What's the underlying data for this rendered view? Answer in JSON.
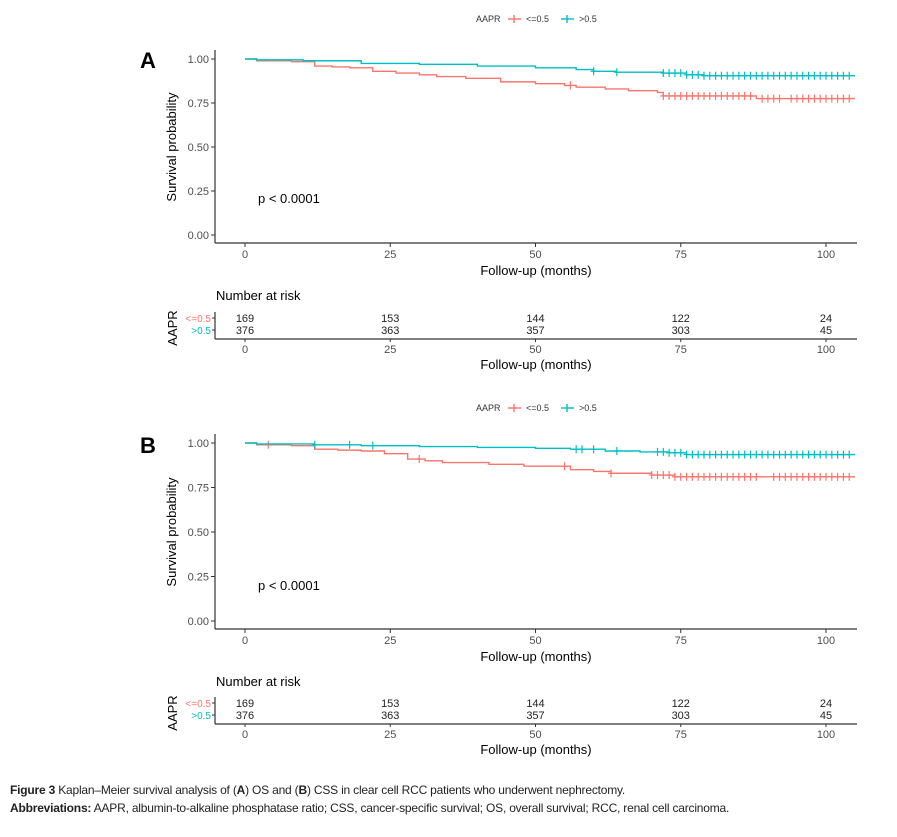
{
  "legend": {
    "title": "AAPR",
    "entries": [
      "<=0.5",
      ">0.5"
    ]
  },
  "colors": {
    "low": "#F8766D",
    "high": "#00BFC4",
    "axis": "#333333",
    "text": "#4d4d4d"
  },
  "caption": {
    "figure_label": "Figure 3",
    "text_parts": [
      " Kaplan–Meier survival analysis of (",
      "A",
      ") OS and (",
      "B",
      ") CSS in clear cell RCC patients who underwent nephrectomy."
    ],
    "abbrev_label": "Abbreviations:",
    "abbrev_text": " AAPR, albumin-to-alkaline phosphatase ratio; CSS, cancer-specific survival; OS, overall survival; RCC, renal cell carcinoma."
  },
  "chart_data": [
    {
      "type": "line",
      "panel_label": "A",
      "title": "",
      "xlabel": "Follow-up (months)",
      "ylabel": "Survival probability",
      "xlim": [
        -5,
        105
      ],
      "ylim": [
        0,
        1
      ],
      "x_ticks": [
        "0",
        "25",
        "50",
        "75",
        "100"
      ],
      "y_ticks": [
        "0.00",
        "0.25",
        "0.50",
        "0.75",
        "1.00"
      ],
      "annotation": "p < 0.0001",
      "legend_position": "top",
      "series": [
        {
          "name": "<=0.5",
          "color": "#F8766D",
          "steps": [
            [
              0,
              1.0
            ],
            [
              2,
              0.99
            ],
            [
              8,
              0.985
            ],
            [
              12,
              0.96
            ],
            [
              15,
              0.955
            ],
            [
              18,
              0.95
            ],
            [
              22,
              0.93
            ],
            [
              26,
              0.92
            ],
            [
              30,
              0.91
            ],
            [
              33,
              0.9
            ],
            [
              38,
              0.89
            ],
            [
              44,
              0.87
            ],
            [
              50,
              0.86
            ],
            [
              55,
              0.85
            ],
            [
              57,
              0.84
            ],
            [
              62,
              0.83
            ],
            [
              66,
              0.82
            ],
            [
              71,
              0.81
            ],
            [
              72,
              0.79
            ],
            [
              88,
              0.775
            ],
            [
              105,
              0.775
            ]
          ],
          "censored": [
            56,
            72,
            73,
            74,
            75,
            76,
            77,
            78,
            79,
            80,
            81,
            82,
            83,
            84,
            85,
            86,
            87,
            89,
            90,
            91,
            92,
            94,
            95,
            96,
            97,
            98,
            99,
            100,
            101,
            102,
            103,
            104
          ]
        },
        {
          "name": ">0.5",
          "color": "#00BFC4",
          "steps": [
            [
              0,
              1.0
            ],
            [
              2,
              0.995
            ],
            [
              10,
              0.99
            ],
            [
              20,
              0.975
            ],
            [
              30,
              0.97
            ],
            [
              40,
              0.96
            ],
            [
              50,
              0.95
            ],
            [
              57,
              0.94
            ],
            [
              60,
              0.93
            ],
            [
              64,
              0.925
            ],
            [
              72,
              0.92
            ],
            [
              76,
              0.91
            ],
            [
              79,
              0.905
            ],
            [
              105,
              0.905
            ]
          ],
          "censored": [
            60,
            64,
            72,
            73,
            74,
            75,
            76,
            77,
            78,
            79,
            80,
            81,
            82,
            83,
            84,
            85,
            86,
            87,
            88,
            89,
            90,
            91,
            92,
            93,
            94,
            95,
            96,
            97,
            98,
            99,
            100,
            101,
            102,
            103,
            104
          ]
        }
      ],
      "risk_table": {
        "title": "Number at risk",
        "strata_label": "AAPR",
        "times": [
          0,
          25,
          50,
          75,
          100
        ],
        "rows": [
          {
            "name": "<=0.5",
            "color": "#F8766D",
            "values": [
              169,
              153,
              144,
              122,
              24
            ]
          },
          {
            "name": ">0.5",
            "color": "#00BFC4",
            "values": [
              376,
              363,
              357,
              303,
              45
            ]
          }
        ],
        "xlabel": "Follow-up (months)"
      }
    },
    {
      "type": "line",
      "panel_label": "B",
      "title": "",
      "xlabel": "Follow-up (months)",
      "ylabel": "Survival probability",
      "xlim": [
        -5,
        105
      ],
      "ylim": [
        0,
        1
      ],
      "x_ticks": [
        "0",
        "25",
        "50",
        "75",
        "100"
      ],
      "y_ticks": [
        "0.00",
        "0.25",
        "0.50",
        "0.75",
        "1.00"
      ],
      "annotation": "p < 0.0001",
      "legend_position": "top",
      "series": [
        {
          "name": "<=0.5",
          "color": "#F8766D",
          "steps": [
            [
              0,
              1.0
            ],
            [
              2,
              0.99
            ],
            [
              8,
              0.985
            ],
            [
              12,
              0.965
            ],
            [
              16,
              0.96
            ],
            [
              20,
              0.955
            ],
            [
              24,
              0.94
            ],
            [
              28,
              0.91
            ],
            [
              31,
              0.9
            ],
            [
              34,
              0.89
            ],
            [
              42,
              0.88
            ],
            [
              48,
              0.87
            ],
            [
              56,
              0.85
            ],
            [
              60,
              0.84
            ],
            [
              63,
              0.83
            ],
            [
              70,
              0.82
            ],
            [
              74,
              0.81
            ],
            [
              105,
              0.81
            ]
          ],
          "censored": [
            4,
            30,
            55,
            63,
            70,
            71,
            72,
            73,
            74,
            75,
            76,
            77,
            78,
            79,
            80,
            81,
            82,
            83,
            84,
            85,
            86,
            87,
            88,
            91,
            92,
            93,
            94,
            95,
            96,
            97,
            98,
            99,
            100,
            101,
            102,
            103,
            104
          ]
        },
        {
          "name": ">0.5",
          "color": "#00BFC4",
          "steps": [
            [
              0,
              1.0
            ],
            [
              2,
              0.995
            ],
            [
              12,
              0.99
            ],
            [
              20,
              0.985
            ],
            [
              30,
              0.98
            ],
            [
              40,
              0.975
            ],
            [
              50,
              0.97
            ],
            [
              56,
              0.965
            ],
            [
              62,
              0.955
            ],
            [
              68,
              0.95
            ],
            [
              73,
              0.945
            ],
            [
              76,
              0.935
            ],
            [
              105,
              0.935
            ]
          ],
          "censored": [
            12,
            18,
            22,
            57,
            58,
            60,
            64,
            71,
            72,
            73,
            74,
            75,
            76,
            77,
            78,
            79,
            80,
            81,
            82,
            83,
            84,
            85,
            86,
            87,
            88,
            89,
            90,
            91,
            92,
            93,
            94,
            95,
            96,
            97,
            98,
            99,
            100,
            101,
            102,
            103,
            104
          ]
        }
      ],
      "risk_table": {
        "title": "Number at risk",
        "strata_label": "AAPR",
        "times": [
          0,
          25,
          50,
          75,
          100
        ],
        "rows": [
          {
            "name": "<=0.5",
            "color": "#F8766D",
            "values": [
              169,
              153,
              144,
              122,
              24
            ]
          },
          {
            "name": ">0.5",
            "color": "#00BFC4",
            "values": [
              376,
              363,
              357,
              303,
              45
            ]
          }
        ],
        "xlabel": "Follow-up (months)"
      }
    }
  ]
}
